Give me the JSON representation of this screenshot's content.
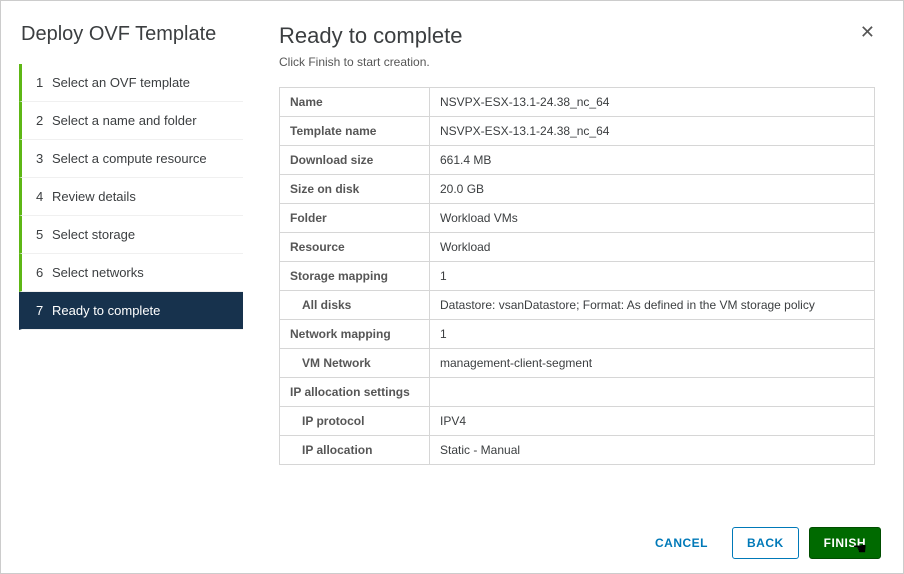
{
  "wizard": {
    "title": "Deploy OVF Template",
    "steps": [
      {
        "num": "1",
        "label": "Select an OVF template",
        "state": "completed"
      },
      {
        "num": "2",
        "label": "Select a name and folder",
        "state": "completed"
      },
      {
        "num": "3",
        "label": "Select a compute resource",
        "state": "completed"
      },
      {
        "num": "4",
        "label": "Review details",
        "state": "completed"
      },
      {
        "num": "5",
        "label": "Select storage",
        "state": "completed"
      },
      {
        "num": "6",
        "label": "Select networks",
        "state": "completed"
      },
      {
        "num": "7",
        "label": "Ready to complete",
        "state": "active"
      }
    ]
  },
  "main": {
    "title": "Ready to complete",
    "subtitle": "Click Finish to start creation.",
    "rows": [
      {
        "label": "Name",
        "value": "NSVPX-ESX-13.1-24.38_nc_64",
        "indent": false
      },
      {
        "label": "Template name",
        "value": "NSVPX-ESX-13.1-24.38_nc_64",
        "indent": false
      },
      {
        "label": "Download size",
        "value": "661.4 MB",
        "indent": false
      },
      {
        "label": "Size on disk",
        "value": "20.0 GB",
        "indent": false
      },
      {
        "label": "Folder",
        "value": "Workload VMs",
        "indent": false
      },
      {
        "label": "Resource",
        "value": "Workload",
        "indent": false
      },
      {
        "label": "Storage mapping",
        "value": "1",
        "indent": false
      },
      {
        "label": "All disks",
        "value": "Datastore: vsanDatastore; Format: As defined in the VM storage policy",
        "indent": true
      },
      {
        "label": "Network mapping",
        "value": "1",
        "indent": false
      },
      {
        "label": "VM Network",
        "value": "management-client-segment",
        "indent": true
      },
      {
        "label": "IP allocation settings",
        "value": "",
        "indent": false
      },
      {
        "label": "IP protocol",
        "value": "IPV4",
        "indent": true
      },
      {
        "label": "IP allocation",
        "value": "Static - Manual",
        "indent": true
      }
    ]
  },
  "footer": {
    "cancel": "CANCEL",
    "back": "BACK",
    "finish": "FINISH"
  },
  "colors": {
    "accent_green": "#5eb715",
    "active_bg": "#17324d",
    "link_blue": "#0079b8",
    "finish_bg": "#006a00",
    "border": "#d6d6d6"
  }
}
